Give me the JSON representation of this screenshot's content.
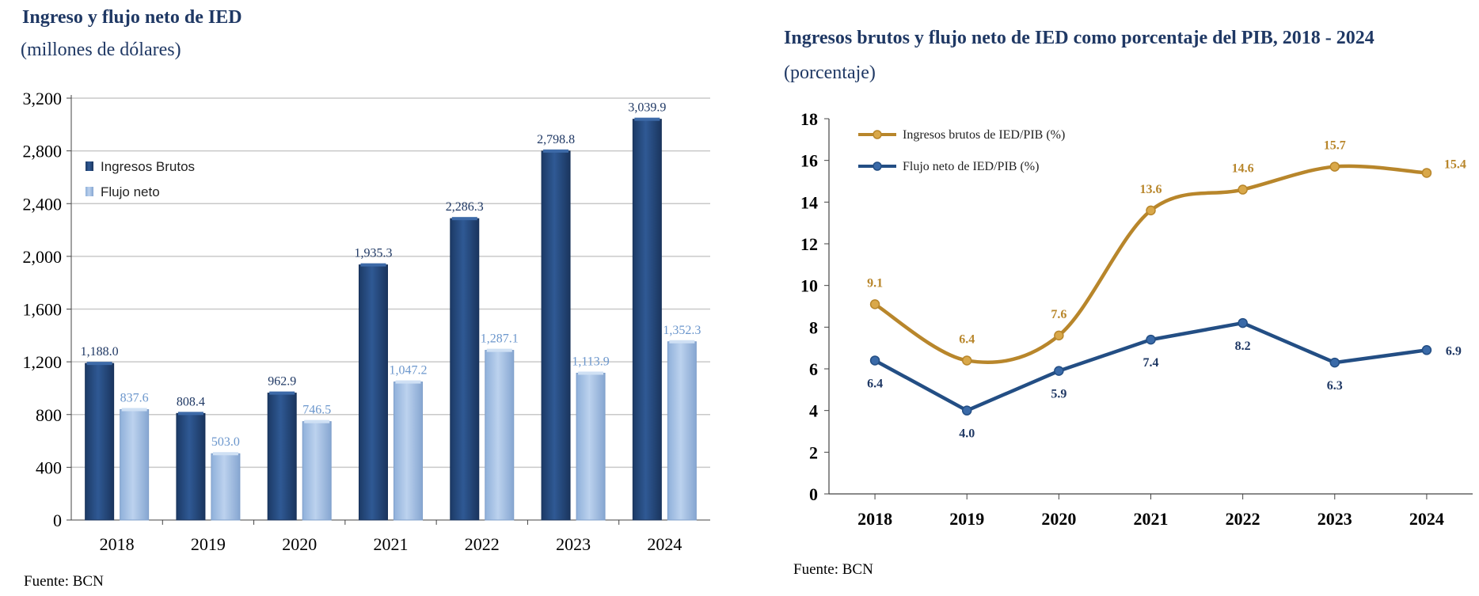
{
  "source_left": "Fuente: BCN",
  "source_right": "Fuente: BCN",
  "colors": {
    "ingresos_brutos": "#2c5289",
    "flujo_neto": "#a6c1e3",
    "ingresos_pib_line": "#b8862b",
    "flujo_pib_line": "#234e84",
    "title": "#1f3864"
  },
  "chart_data": [
    {
      "type": "bar",
      "title": "Ingreso y flujo neto de IED",
      "subtitle": "(millones de dólares)",
      "categories": [
        "2018",
        "2019",
        "2020",
        "2021",
        "2022",
        "2023",
        "2024"
      ],
      "series": [
        {
          "name": "Ingresos Brutos",
          "values": [
            1188.0,
            808.4,
            962.9,
            1935.3,
            2286.3,
            2798.8,
            3039.9
          ],
          "labels": [
            "1,188.0",
            "808.4",
            "962.9",
            "1,935.3",
            "2,286.3",
            "2,798.8",
            "3,039.9"
          ]
        },
        {
          "name": "Flujo neto",
          "values": [
            837.6,
            503.0,
            746.5,
            1047.2,
            1287.1,
            1113.9,
            1352.3
          ],
          "labels": [
            "837.6",
            "503.0",
            "746.5",
            "1,047.2",
            "1,287.1",
            "1,113.9",
            "1,352.3"
          ]
        }
      ],
      "ylim": [
        0,
        3200
      ],
      "yticks": [
        "0",
        "400",
        "800",
        "1,200",
        "1,600",
        "2,000",
        "2,400",
        "2,800",
        "3,200"
      ],
      "grid": true,
      "legend_position": "top-left"
    },
    {
      "type": "line",
      "title": "Ingresos brutos y flujo neto de IED como porcentaje del PIB, 2018 - 2024",
      "subtitle": "(porcentaje)",
      "categories": [
        "2018",
        "2019",
        "2020",
        "2021",
        "2022",
        "2023",
        "2024"
      ],
      "series": [
        {
          "name": "Ingresos brutos de IED/PIB (%)",
          "values": [
            9.1,
            6.4,
            7.6,
            13.6,
            14.6,
            15.7,
            15.4
          ],
          "labels": [
            "9.1",
            "6.4",
            "7.6",
            "13.6",
            "14.6",
            "15.7",
            "15.4"
          ]
        },
        {
          "name": "Flujo neto de IED/PIB (%)",
          "values": [
            6.4,
            4.0,
            5.9,
            7.4,
            8.2,
            6.3,
            6.9
          ],
          "labels": [
            "6.4",
            "4.0",
            "5.9",
            "7.4",
            "8.2",
            "6.3",
            "6.9"
          ]
        }
      ],
      "ylim": [
        0,
        18
      ],
      "yticks": [
        "0",
        "2",
        "4",
        "6",
        "8",
        "10",
        "12",
        "14",
        "16",
        "18"
      ],
      "grid": false,
      "legend_position": "top-left"
    }
  ]
}
